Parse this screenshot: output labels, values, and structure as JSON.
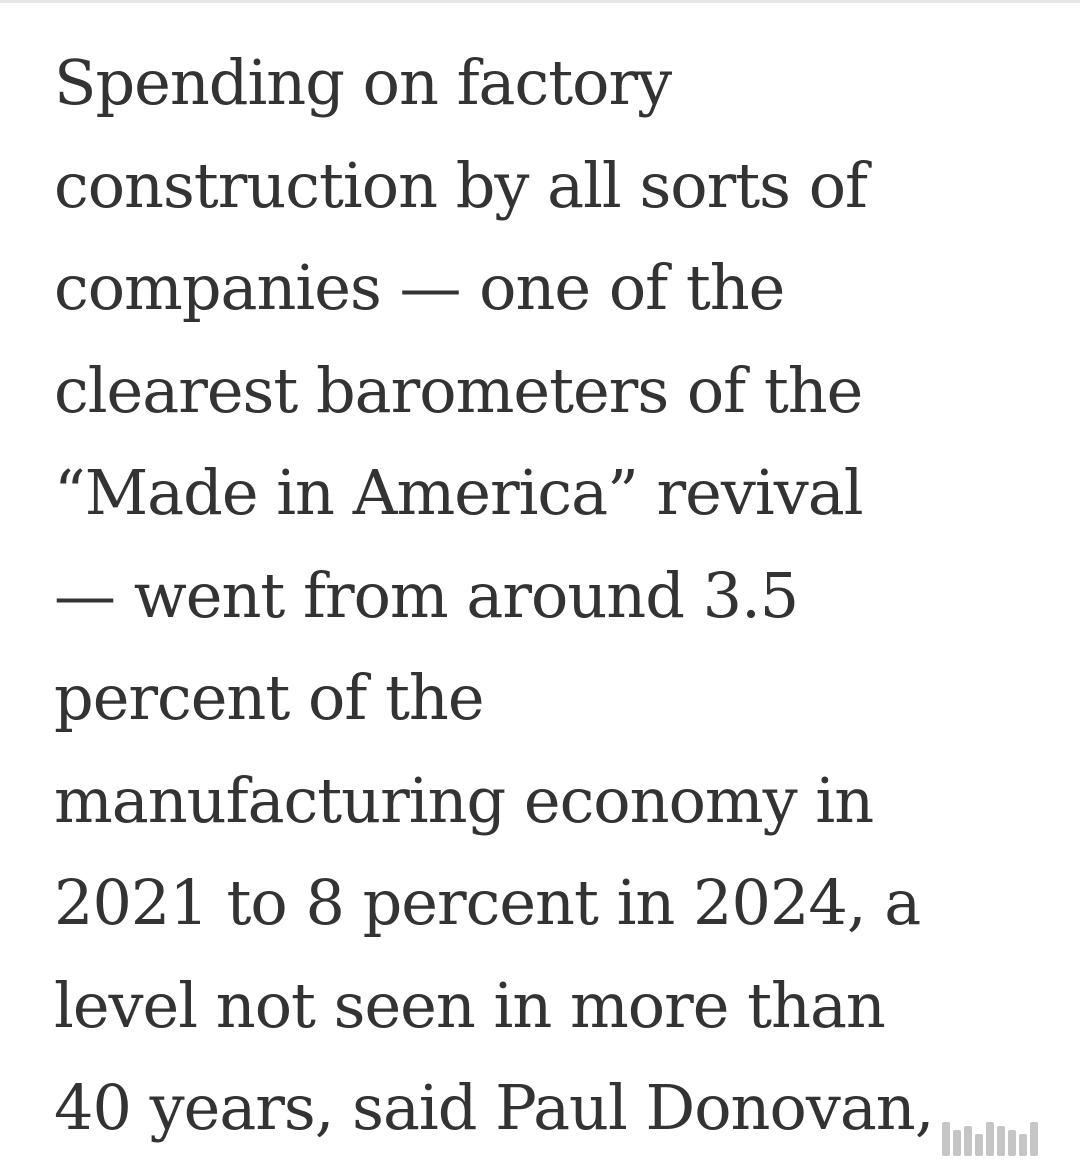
{
  "article": {
    "lines": [
      "Spending on factory",
      "construction by all sorts of",
      "companies — one of the",
      "clearest barometers of the",
      "“Made in America” revival",
      "— went from around 3.5",
      "percent of the",
      "manufacturing economy in",
      "2021 to 8 percent in 2024, a",
      "level not seen in more than",
      "40 years, said Paul Donovan,"
    ]
  },
  "watermark": {
    "icon": "watermark-logo-icon"
  }
}
